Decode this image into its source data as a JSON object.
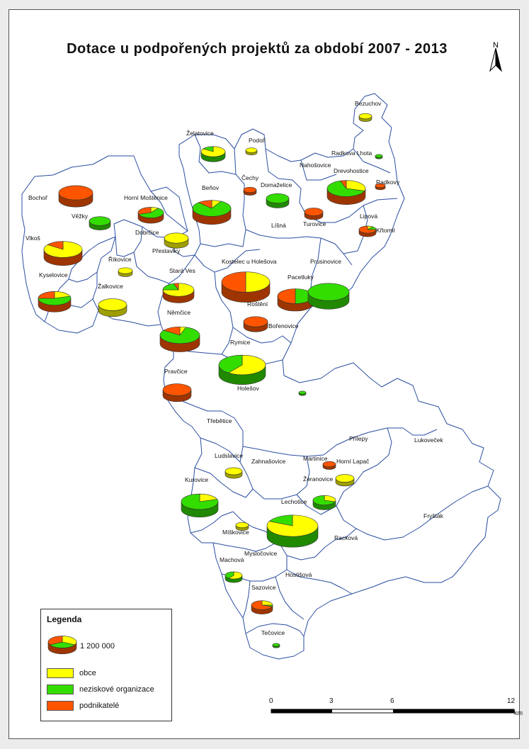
{
  "map": {
    "title": "Dotace u podpořených projektů za období 2007 - 2013",
    "north_label": "N",
    "colors": {
      "boundary": "#2a4ea0",
      "obce": "#ffff00",
      "neziskove": "#33dd00",
      "podnikatele": "#ff5500"
    },
    "places": [
      "Bezuchov",
      "Želatovice",
      "Podolí",
      "Radkova Lhota",
      "Nahošovice",
      "Drevohostice",
      "Čechy",
      "Domaželice",
      "Radkovy",
      "Bochoř",
      "Horní Moštěnice",
      "Beňov",
      "Věžky",
      "Turovice",
      "Lipová",
      "Křtomil",
      "Dobrčice",
      "Líšná",
      "Vlkoš",
      "Přestavlky",
      "Prusinovice",
      "Říkovice",
      "Kostelec u Holešova",
      "Stará Ves",
      "Kyselovice",
      "Žalkovice",
      "Pacetluky",
      "Roštění",
      "Němčice",
      "Bořenovice",
      "Rymice",
      "Pravčice",
      "Holešov",
      "Třebětice",
      "Přílepy",
      "Lukoveček",
      "Ludslavice",
      "Zahnašovice",
      "Martinice",
      "Horní Lapač",
      "Kurovice",
      "Žeranovice",
      "Lechotice",
      "Fryšták",
      "Míškovice",
      "Racková",
      "Machová",
      "Mysločovice",
      "Hostišová",
      "Sazovice",
      "Tečovice"
    ],
    "subsidies": [
      {
        "place": "Bezuchov",
        "obce": 1.0,
        "neziskove": 0,
        "podnikatele": 0
      },
      {
        "place": "Želatovice",
        "obce": 0.85,
        "neziskove": 0.15,
        "podnikatele": 0
      },
      {
        "place": "Podolí",
        "obce": 1.0,
        "neziskove": 0,
        "podnikatele": 0
      },
      {
        "place": "Radkova Lhota",
        "obce": 0,
        "neziskove": 1.0,
        "podnikatele": 0
      },
      {
        "place": "Drevohostice",
        "obce": 0.3,
        "neziskove": 0.65,
        "podnikatele": 0.05
      },
      {
        "place": "Čechy",
        "obce": 0,
        "neziskove": 0,
        "podnikatele": 1.0
      },
      {
        "place": "Domaželice",
        "obce": 0,
        "neziskove": 1.0,
        "podnikatele": 0
      },
      {
        "place": "Radkovy",
        "obce": 0,
        "neziskove": 0,
        "podnikatele": 1.0
      },
      {
        "place": "Bochoř",
        "obce": 0,
        "neziskove": 0,
        "podnikatele": 1.0
      },
      {
        "place": "Horní Moštěnice",
        "obce": 0.1,
        "neziskove": 0.6,
        "podnikatele": 0.3
      },
      {
        "place": "Beňov",
        "obce": 0.08,
        "neziskove": 0.8,
        "podnikatele": 0.12
      },
      {
        "place": "Věžky",
        "obce": 0,
        "neziskove": 1.0,
        "podnikatele": 0
      },
      {
        "place": "Turovice",
        "obce": 0,
        "neziskove": 0,
        "podnikatele": 1.0
      },
      {
        "place": "Lipová",
        "obce": 0.1,
        "neziskove": 0.15,
        "podnikatele": 0.75
      },
      {
        "place": "Dobrčice",
        "obce": 1.0,
        "neziskove": 0,
        "podnikatele": 0
      },
      {
        "place": "Vlkoš",
        "obce": 0.85,
        "neziskove": 0,
        "podnikatele": 0.15
      },
      {
        "place": "Říkovice",
        "obce": 1.0,
        "neziskove": 0,
        "podnikatele": 0
      },
      {
        "place": "Kostelec u Holešova",
        "obce": 0.5,
        "neziskove": 0,
        "podnikatele": 0.5
      },
      {
        "place": "Stará Ves",
        "obce": 0.75,
        "neziskove": 0.2,
        "podnikatele": 0.05
      },
      {
        "place": "Kyselovice",
        "obce": 0.2,
        "neziskove": 0.55,
        "podnikatele": 0.25
      },
      {
        "place": "Žalkovice",
        "obce": 1.0,
        "neziskove": 0,
        "podnikatele": 0
      },
      {
        "place": "Pacetluky",
        "obce": 0,
        "neziskove": 0.5,
        "podnikatele": 0.5
      },
      {
        "place": "Prusinovice",
        "obce": 0,
        "neziskove": 1.0,
        "podnikatele": 0
      },
      {
        "place": "Roštění",
        "obce": 0,
        "neziskove": 0,
        "podnikatele": 1.0
      },
      {
        "place": "Němčice",
        "obce": 0.05,
        "neziskove": 0.8,
        "podnikatele": 0.15
      },
      {
        "place": "Rymice",
        "obce": 0.6,
        "neziskove": 0.4,
        "podnikatele": 0
      },
      {
        "place": "Pravčice",
        "obce": 0,
        "neziskove": 0,
        "podnikatele": 1.0
      },
      {
        "place": "Holešov",
        "obce": 0,
        "neziskove": 1.0,
        "podnikatele": 0
      },
      {
        "place": "Ludslavice",
        "obce": 1.0,
        "neziskove": 0,
        "podnikatele": 0
      },
      {
        "place": "Martinice",
        "obce": 0,
        "neziskove": 0,
        "podnikatele": 1.0
      },
      {
        "place": "Horní Lapač",
        "obce": 1.0,
        "neziskove": 0,
        "podnikatele": 0
      },
      {
        "place": "Kurovice",
        "obce": 0.2,
        "neziskove": 0.8,
        "podnikatele": 0
      },
      {
        "place": "Žeranovice",
        "obce": 0.3,
        "neziskove": 0.7,
        "podnikatele": 0
      },
      {
        "place": "Lechotice",
        "obce": 0.82,
        "neziskove": 0.18,
        "podnikatele": 0
      },
      {
        "place": "Míškovice",
        "obce": 1.0,
        "neziskove": 0,
        "podnikatele": 0
      },
      {
        "place": "Machová",
        "obce": 0.6,
        "neziskove": 0.4,
        "podnikatele": 0
      },
      {
        "place": "Sazovice",
        "obce": 0.25,
        "neziskove": 0.05,
        "podnikatele": 0.7
      },
      {
        "place": "Tečovice",
        "obce": 0,
        "neziskove": 1.0,
        "podnikatele": 0
      }
    ]
  },
  "legend": {
    "title": "Legenda",
    "size_value": "1 200 000",
    "items": [
      {
        "label": "obce",
        "color": "#ffff00"
      },
      {
        "label": "neziskové organizace",
        "color": "#33dd00"
      },
      {
        "label": "podnikatelé",
        "color": "#ff5500"
      }
    ]
  },
  "scale": {
    "ticks": [
      "0",
      "3",
      "6",
      "12"
    ],
    "unit": "km"
  }
}
